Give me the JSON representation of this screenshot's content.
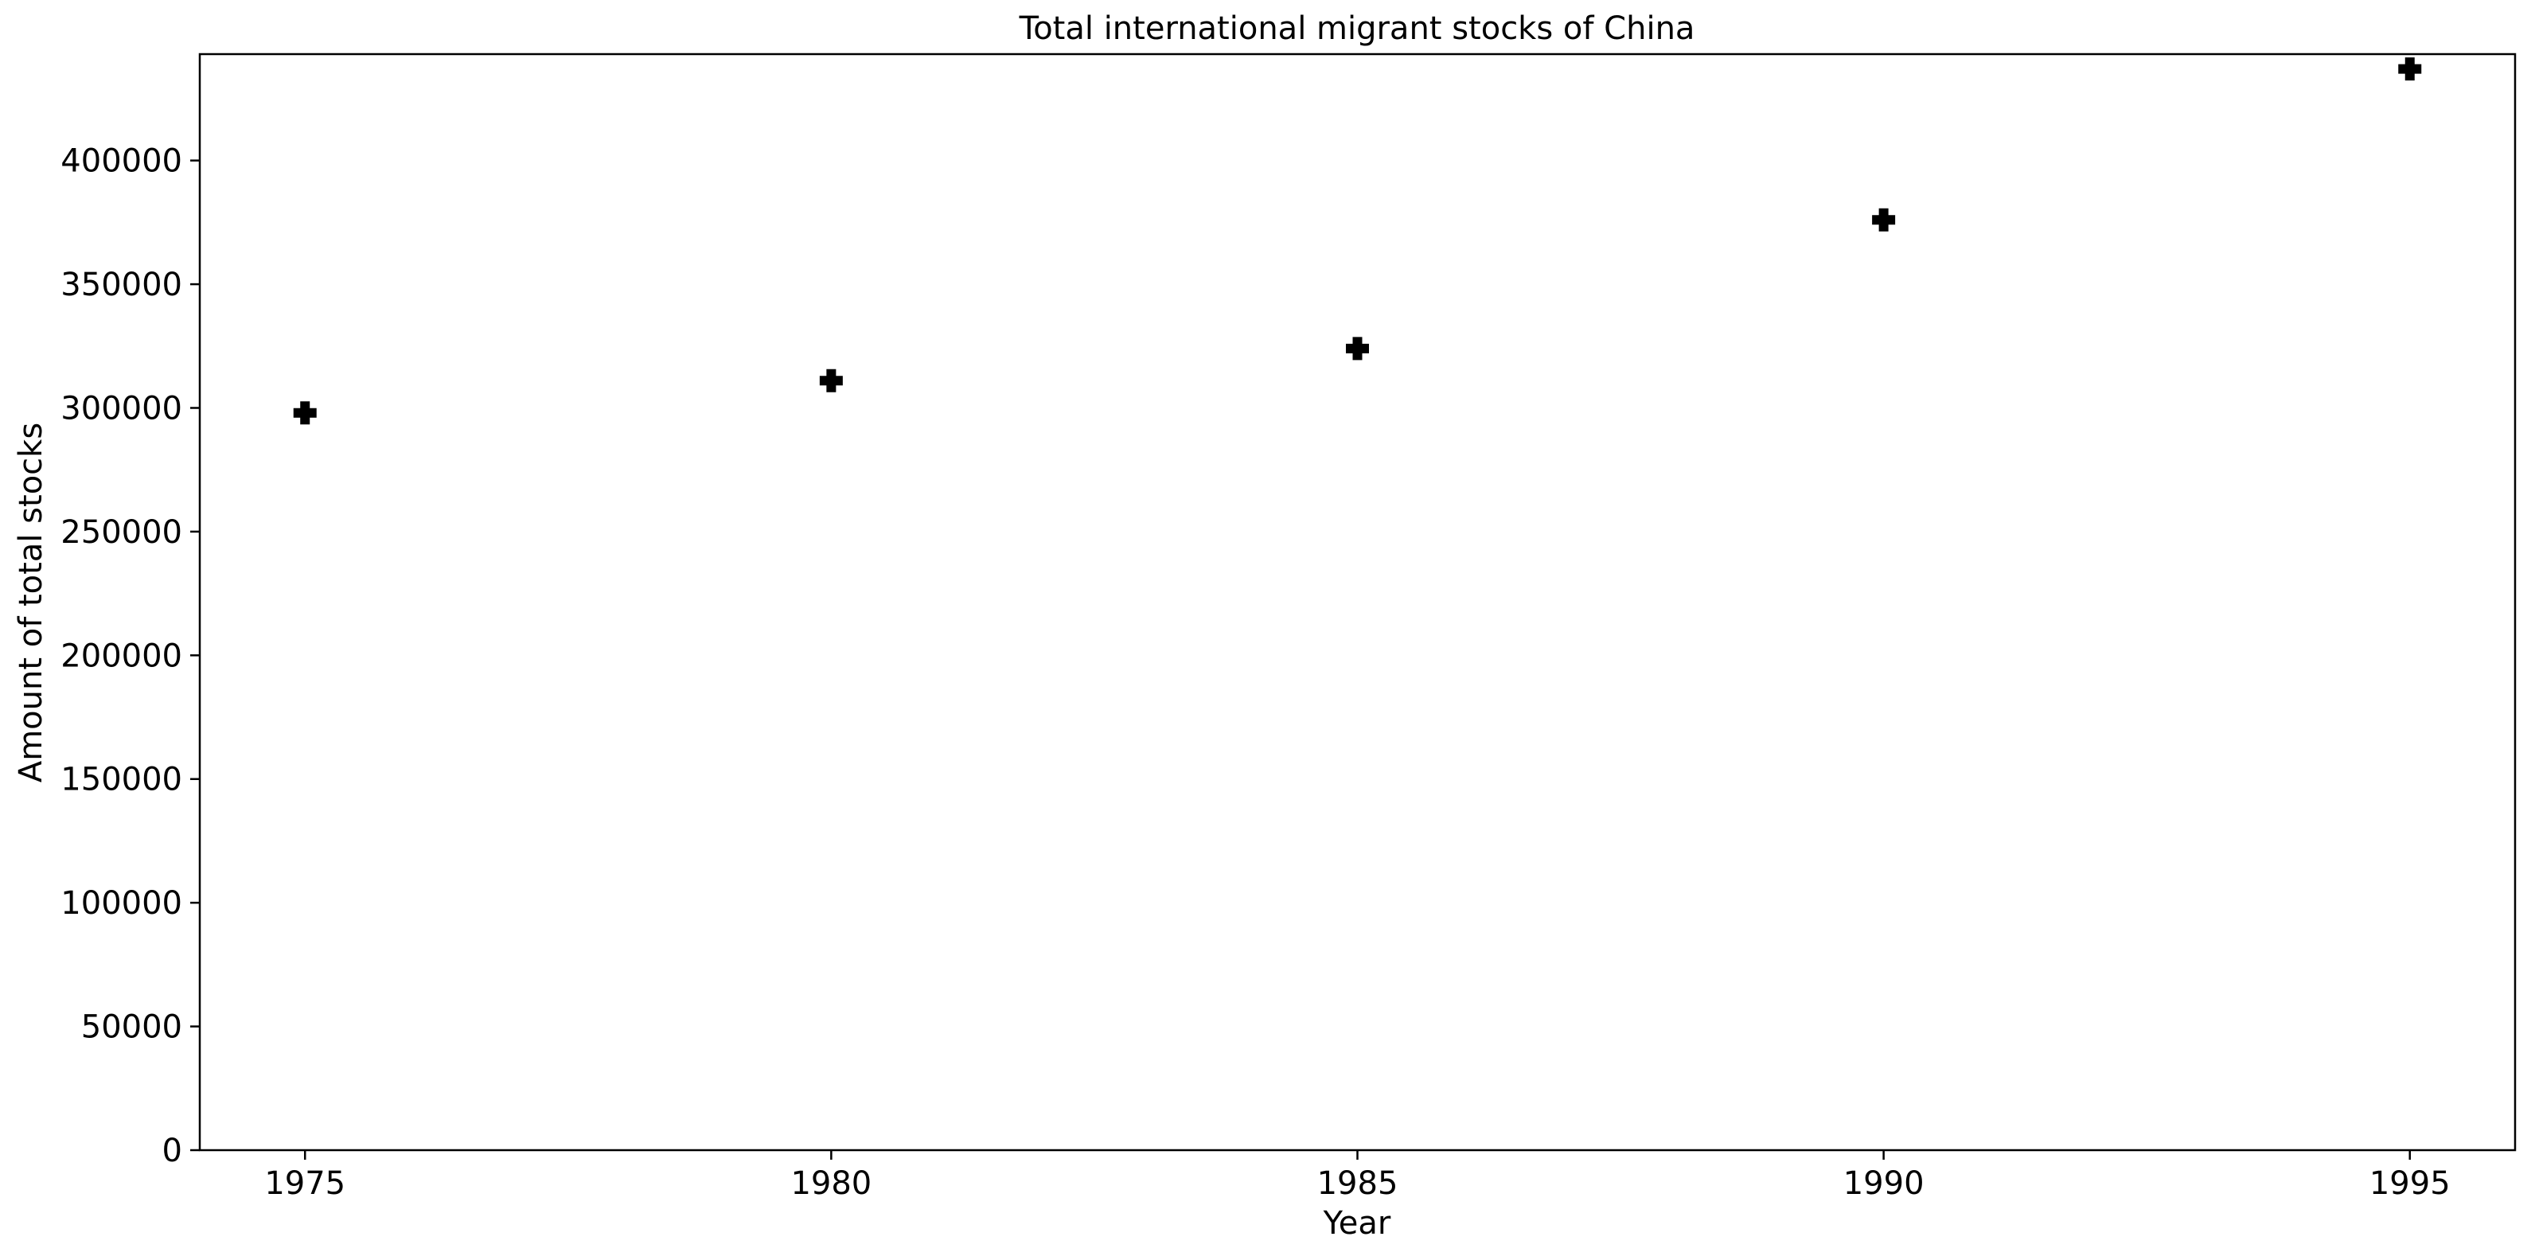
{
  "chart_data": {
    "type": "scatter",
    "title": "Total international migrant stocks of China",
    "xlabel": "Year",
    "ylabel": "Amount of total stocks",
    "x_ticks": [
      "1975",
      "1980",
      "1985",
      "1990",
      "1995"
    ],
    "y_ticks": [
      "0",
      "50000",
      "100000",
      "150000",
      "200000",
      "250000",
      "300000",
      "350000",
      "400000"
    ],
    "xlim": [
      1974,
      1996
    ],
    "ylim": [
      0,
      443000
    ],
    "grid": false,
    "marker": "plus-filled",
    "marker_color": "#000000",
    "series": [
      {
        "x": [
          1975,
          1980,
          1985,
          1990,
          1995
        ],
        "y": [
          298000,
          311000,
          324000,
          376000,
          437000
        ]
      }
    ]
  }
}
